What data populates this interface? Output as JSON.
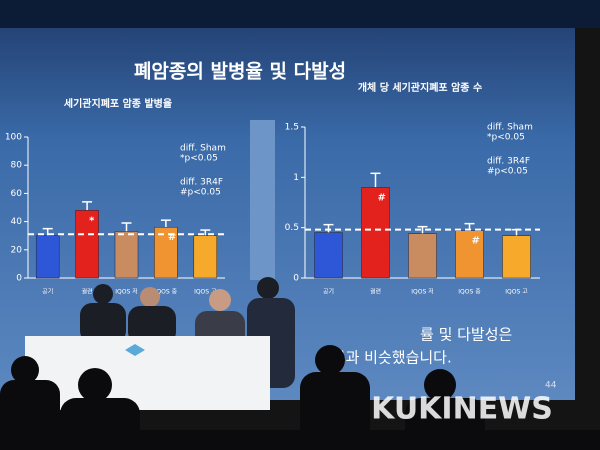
{
  "slide": {
    "title": "폐암종의 발병율 및 다발성",
    "caption": [
      "률 및 다발성은",
      "그룹과 비슷했습니다."
    ],
    "page_number": "44"
  },
  "watermark": "KUKINEWS",
  "chart_data": [
    {
      "type": "bar",
      "title": "세기관지폐포 암종 발병율",
      "categories": [
        "공기",
        "궐련",
        "IQOS 저",
        "IQOS 중",
        "IQOS 고"
      ],
      "values": [
        30,
        48,
        33,
        36,
        30
      ],
      "errors": [
        5,
        6,
        6,
        5,
        4
      ],
      "colors": [
        "#2e57d8",
        "#e3221e",
        "#c98b60",
        "#ef9430",
        "#f6a92a"
      ],
      "marker_labels": [
        null,
        "*",
        null,
        "#",
        null
      ],
      "reference_line": 31,
      "ylim": [
        0,
        100
      ],
      "yticks": [
        0,
        20,
        40,
        60,
        80,
        100
      ],
      "annotations": [
        "diff. Sham",
        "*p<0.05",
        "diff. 3R4F",
        "#p<0.05"
      ]
    },
    {
      "type": "bar",
      "title": "개체 당 세기관지폐포 암종 수",
      "categories": [
        "공기",
        "궐련",
        "IQOS 저",
        "IQOS 중",
        "IQOS 고"
      ],
      "values": [
        0.45,
        0.9,
        0.44,
        0.47,
        0.42
      ],
      "errors": [
        0.08,
        0.14,
        0.07,
        0.07,
        0.06
      ],
      "colors": [
        "#2e57d8",
        "#e3221e",
        "#c98b60",
        "#ef9430",
        "#f6a92a"
      ],
      "marker_labels": [
        null,
        "#",
        null,
        "#",
        null
      ],
      "reference_line": 0.48,
      "ylim": [
        0,
        1.5
      ],
      "yticks": [
        0,
        0.5,
        1,
        1.5
      ],
      "annotations": [
        "diff. Sham",
        "*p<0.05",
        "diff. 3R4F",
        "#p<0.05"
      ]
    }
  ]
}
